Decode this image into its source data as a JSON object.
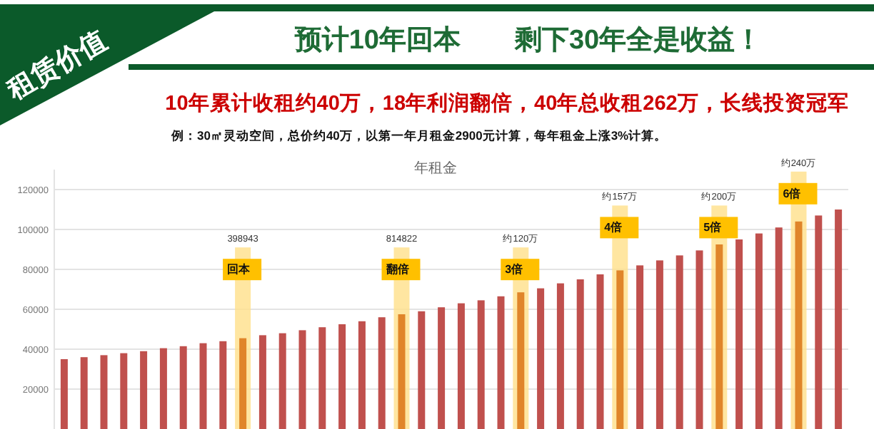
{
  "chart_data": {
    "type": "bar",
    "title": "预计10年回本　　剩下30年全是收益！",
    "subtitle": "10年累计收租约40万，18年利润翻倍，40年总收租262万，长线投资冠军",
    "annotations": [
      "租赁价值",
      "例：30㎡灵动空间，总价约40万，以第一年月租金2900元计算，每年租金上涨3%计算。",
      "年租金",
      "398943",
      "814822",
      "约120万",
      "约157万",
      "约200万",
      "约240万",
      "回本",
      "翻倍",
      "3倍",
      "4倍",
      "5倍",
      "6倍"
    ],
    "categories": [
      null,
      null,
      null,
      null,
      null,
      null,
      null,
      null,
      null,
      null,
      null,
      null,
      null,
      null,
      null,
      null,
      null,
      null,
      null,
      null,
      null,
      null,
      null,
      null,
      null,
      null,
      null,
      null,
      null,
      null,
      null,
      null,
      null,
      null,
      null,
      null,
      null,
      null,
      null,
      null
    ],
    "series": [
      {
        "color": "#ffe08a",
        "values": [
          null,
          null,
          null,
          null,
          null,
          null,
          null,
          null,
          null,
          91000,
          null,
          null,
          null,
          null,
          null,
          null,
          null,
          91000,
          null,
          null,
          null,
          null,
          null,
          91000,
          null,
          null,
          null,
          null,
          112000,
          null,
          null,
          null,
          null,
          112000,
          null,
          null,
          null,
          129000,
          null,
          null
        ]
      },
      {
        "colors": [
          "#c0504d",
          "#c0504d",
          "#c0504d",
          "#c0504d",
          "#c0504d",
          "#c0504d",
          "#c0504d",
          "#c0504d",
          "#c0504d",
          "#e0852a",
          "#c0504d",
          "#c0504d",
          "#c0504d",
          "#c0504d",
          "#c0504d",
          "#c0504d",
          "#c0504d",
          "#e0852a",
          "#c0504d",
          "#c0504d",
          "#c0504d",
          "#c0504d",
          "#c0504d",
          "#e0852a",
          "#c0504d",
          "#c0504d",
          "#c0504d",
          "#c0504d",
          "#e0852a",
          "#c0504d",
          "#c0504d",
          "#c0504d",
          "#c0504d",
          "#e0852a",
          "#c0504d",
          "#c0504d",
          "#c0504d",
          "#e0852a",
          "#c0504d",
          "#c0504d"
        ],
        "values": [
          35000,
          36000,
          37000,
          38000,
          39000,
          40500,
          41500,
          43000,
          44000,
          45500,
          47000,
          48000,
          49500,
          51000,
          52500,
          54000,
          56000,
          57500,
          59000,
          61000,
          63000,
          64500,
          66500,
          68500,
          70500,
          73000,
          75000,
          77500,
          79500,
          82000,
          84500,
          87000,
          89500,
          92500,
          95000,
          98000,
          101000,
          104000,
          107000,
          110000
        ]
      }
    ],
    "ylim": [
      0,
      130000
    ],
    "yticks": [
      20000,
      40000,
      60000,
      80000,
      100000,
      120000
    ],
    "grid": "y",
    "tick_labels": "y"
  }
}
